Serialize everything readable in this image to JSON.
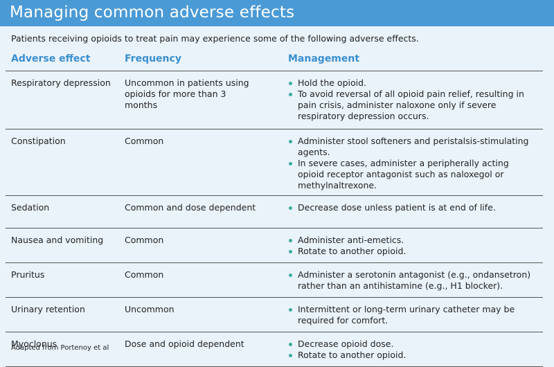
{
  "header": {
    "title": "Managing common adverse effects"
  },
  "intro": "Patients receiving opioids to treat pain may experience some of the following adverse effects.",
  "table": {
    "headers": [
      "Adverse effect",
      "Frequency",
      "Management"
    ],
    "rows": [
      {
        "effect": "Respiratory depression",
        "frequency": "Uncommon in patients using opioids for more than 3 months",
        "management": [
          "Hold the opioid.",
          "To avoid reversal of all opioid pain relief, resulting in pain crisis, administer naloxone only if severe respiratory depression occurs."
        ]
      },
      {
        "effect": "Constipation",
        "frequency": "Common",
        "management": [
          "Administer stool softeners and peristalsis-stimulating agents.",
          "In severe cases, administer a peripherally acting opioid receptor antagonist such as naloxegol or methylnaltrexone."
        ]
      },
      {
        "effect": "Sedation",
        "frequency": "Common and dose dependent",
        "management": [
          "Decrease dose unless patient is at end of life."
        ]
      },
      {
        "effect": "Nausea and vomiting",
        "frequency": "Common",
        "management": [
          "Administer anti-emetics.",
          "Rotate to another opioid."
        ]
      },
      {
        "effect": "Pruritus",
        "frequency": "Common",
        "management": [
          "Administer a serotonin antagonist (e.g., ondansetron) rather than an antihistamine (e.g., H1 blocker)."
        ]
      },
      {
        "effect": "Urinary retention",
        "frequency": "Uncommon",
        "management": [
          "Intermittent or long-term urinary catheter may be required for comfort."
        ]
      },
      {
        "effect": "Myoclonus",
        "frequency": "Dose and opioid dependent",
        "management": [
          "Decrease opioid dose.",
          "Rotate to another opioid."
        ]
      }
    ]
  },
  "footer": "Adapted from Portenoy et al"
}
